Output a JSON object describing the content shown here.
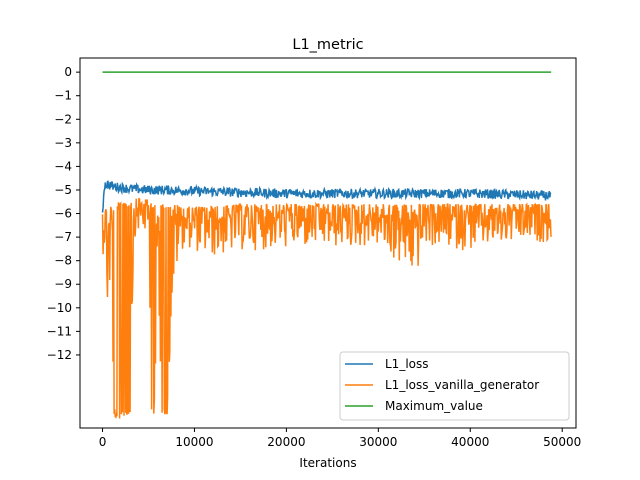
{
  "chart_data": {
    "type": "line",
    "title": "L1_metric",
    "xlabel": "Iterations",
    "ylabel": "",
    "xlim": [
      -2450,
      51500
    ],
    "ylim": [
      -15.1,
      0.6
    ],
    "grid": false,
    "legend_position": "lower-right",
    "x_ticks": [
      0,
      10000,
      20000,
      30000,
      40000,
      50000
    ],
    "x_tick_labels": [
      "0",
      "10000",
      "20000",
      "30000",
      "40000",
      "50000"
    ],
    "y_ticks": [
      0,
      -1,
      -2,
      -3,
      -4,
      -5,
      -6,
      -7,
      -8,
      -9,
      -10,
      -11,
      -12
    ],
    "y_tick_labels": [
      "0",
      "−1",
      "−2",
      "−3",
      "−4",
      "−5",
      "−6",
      "−7",
      "−8",
      "−9",
      "−10",
      "−11",
      "−12"
    ],
    "series": [
      {
        "name": "L1_loss",
        "color": "#1f77b4",
        "x": [
          0,
          200,
          500,
          800,
          1200,
          2000,
          3000,
          5000,
          7000,
          10000,
          15000,
          20000,
          25000,
          30000,
          35000,
          40000,
          45000,
          48800
        ],
        "y": [
          -5.9,
          -4.75,
          -4.7,
          -4.75,
          -4.8,
          -4.85,
          -4.9,
          -4.95,
          -4.95,
          -5.0,
          -5.05,
          -5.1,
          -5.1,
          -5.1,
          -5.1,
          -5.1,
          -5.15,
          -5.2
        ],
        "noise_low": -0.25,
        "noise_high": 0.15
      },
      {
        "name": "L1_loss_vanilla_generator",
        "color": "#ff7f0e",
        "x": [
          0,
          300,
          600,
          1000,
          1200,
          1500,
          2000,
          2500,
          3000,
          3500,
          4000,
          4500,
          5000,
          5300,
          5600,
          6000,
          6500,
          7000,
          7500,
          8000,
          8500,
          9000,
          10000,
          12000,
          15000,
          20000,
          25000,
          30000,
          34000,
          35000,
          40000,
          45000,
          48800
        ],
        "y_top": [
          -5.8,
          -5.7,
          -5.6,
          -5.6,
          -5.6,
          -5.6,
          -5.5,
          -5.4,
          -5.5,
          -5.4,
          -5.3,
          -5.4,
          -5.4,
          -5.5,
          -5.6,
          -5.6,
          -5.5,
          -5.5,
          -5.6,
          -5.6,
          -5.7,
          -5.7,
          -5.7,
          -5.7,
          -5.6,
          -5.6,
          -5.6,
          -5.6,
          -5.6,
          -5.6,
          -5.6,
          -5.6,
          -5.6
        ],
        "y_bottom": [
          -7.8,
          -7.5,
          -11.8,
          -7.2,
          -14.6,
          -14.7,
          -14.7,
          -14.7,
          -14.7,
          -7.0,
          -6.8,
          -6.9,
          -7.0,
          -14.7,
          -14.7,
          -8.9,
          -14.7,
          -14.7,
          -10.8,
          -8.7,
          -7.6,
          -7.4,
          -7.6,
          -7.9,
          -7.6,
          -7.5,
          -7.5,
          -7.4,
          -8.9,
          -7.4,
          -7.6,
          -7.3,
          -7.2
        ]
      },
      {
        "name": "Maximum_value",
        "color": "#2ca02c",
        "x": [
          0,
          48800
        ],
        "y": [
          0,
          0
        ]
      }
    ]
  }
}
